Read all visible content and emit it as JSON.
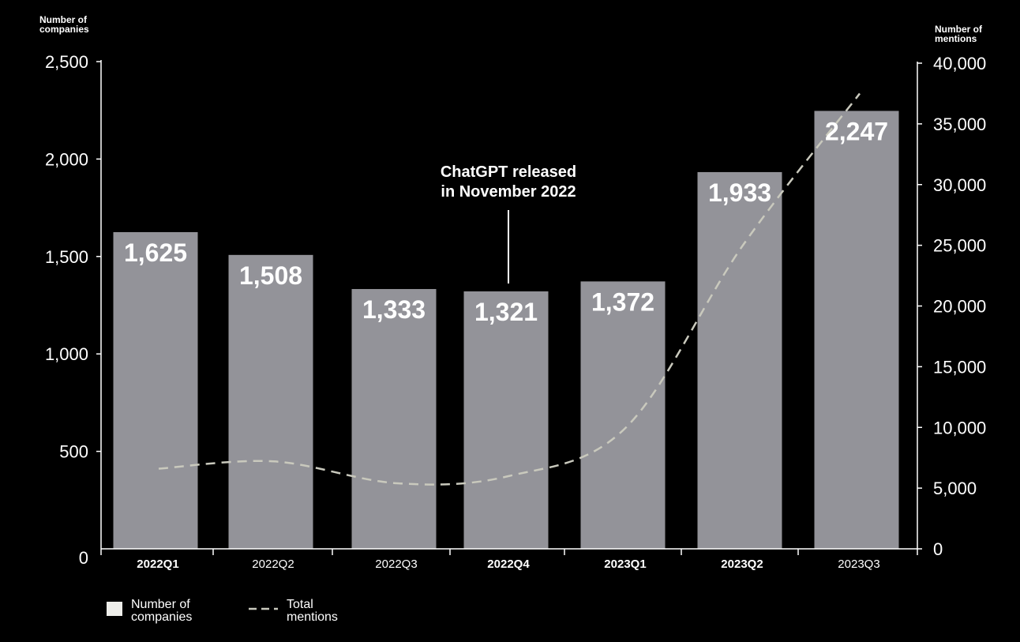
{
  "chart_data": {
    "type": "bar",
    "categories": [
      "2022Q1",
      "2022Q2",
      "2022Q3",
      "2022Q4",
      "2023Q1",
      "2023Q2",
      "2023Q3"
    ],
    "bold_categories": [
      "2022Q1",
      "2022Q4",
      "2023Q1",
      "2023Q2"
    ],
    "series": [
      {
        "name": "Number of companies",
        "type": "bar",
        "axis": "left",
        "values": [
          1625,
          1508,
          1333,
          1321,
          1372,
          1933,
          2247
        ],
        "value_labels": [
          "1,625",
          "1,508",
          "1,333",
          "1,321",
          "1,372",
          "1,933",
          "2,247"
        ],
        "color": "#939399"
      },
      {
        "name": "Total mentions",
        "type": "line",
        "style": "dashed",
        "axis": "right",
        "values": [
          6600,
          7200,
          5400,
          6000,
          10000,
          25000,
          37500
        ],
        "color": "#c9c9bd"
      }
    ],
    "left_axis": {
      "title_lines": [
        "Number of",
        "companies"
      ],
      "range": [
        0,
        2500
      ],
      "ticks": [
        0,
        500,
        1000,
        1500,
        2000,
        2500
      ],
      "tick_labels": [
        "0",
        "500",
        "1,000",
        "1,500",
        "2,000",
        "2,500"
      ]
    },
    "right_axis": {
      "title_lines": [
        "Number of",
        "mentions"
      ],
      "range": [
        0,
        40000
      ],
      "ticks": [
        0,
        5000,
        10000,
        15000,
        20000,
        25000,
        30000,
        35000,
        40000
      ],
      "tick_labels": [
        "0",
        "5,000",
        "10,000",
        "15,000",
        "20,000",
        "25,000",
        "30,000",
        "35,000",
        "40,000"
      ]
    },
    "annotation": {
      "lines": [
        "ChatGPT released",
        "in November 2022"
      ],
      "category": "2022Q4"
    },
    "legend": {
      "position": "bottom-left",
      "items": [
        {
          "lines": [
            "Number of",
            "companies"
          ],
          "symbol": "square",
          "color": "#eeeeea"
        },
        {
          "lines": [
            "Total",
            "mentions"
          ],
          "symbol": "dashed-line",
          "color": "#c9c9bd"
        }
      ]
    },
    "grid": false,
    "background": "#000000"
  }
}
